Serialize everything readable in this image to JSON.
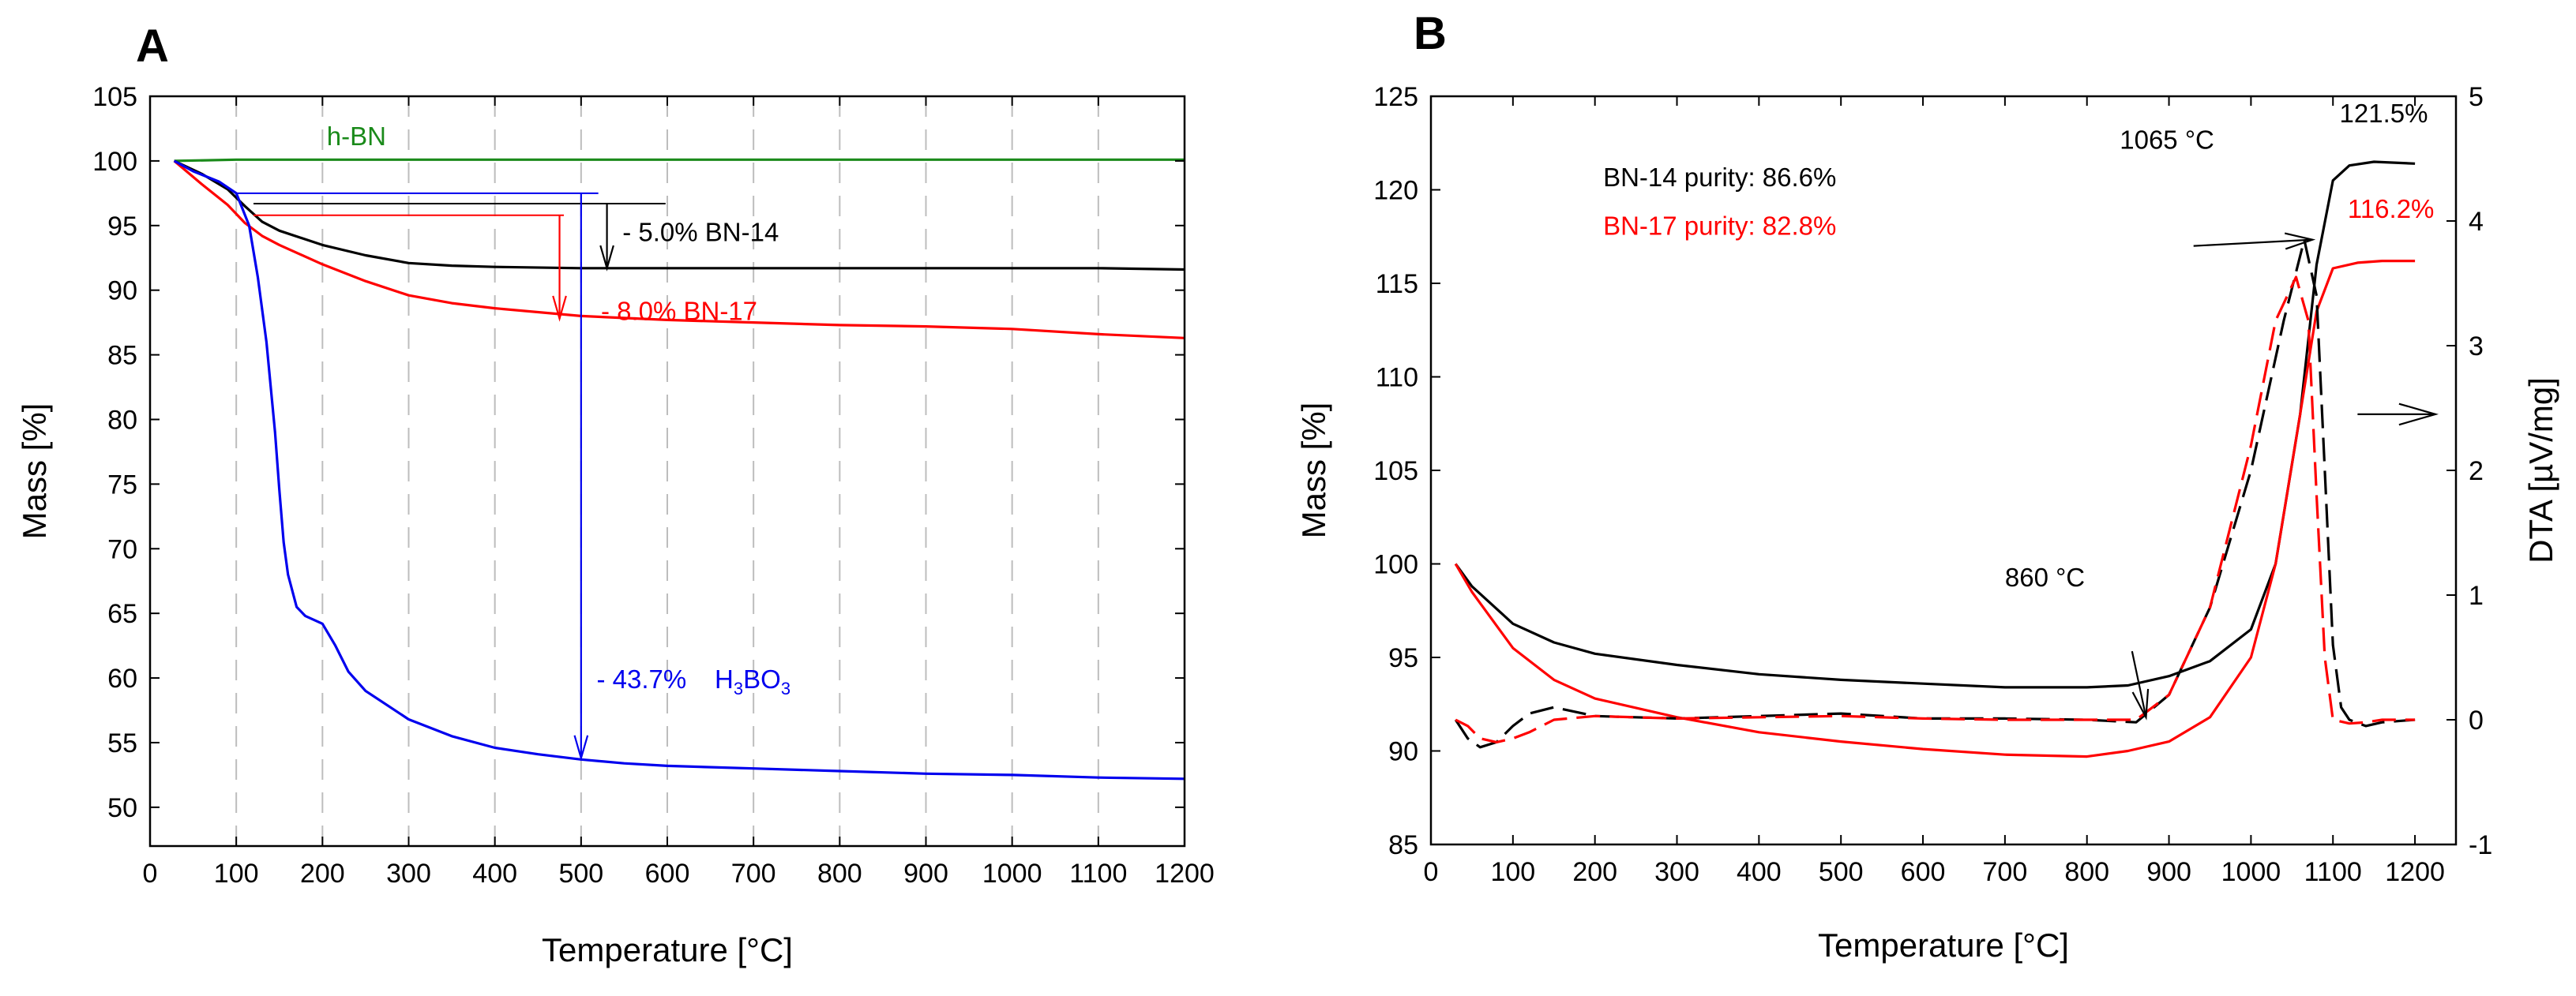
{
  "chart_data": [
    {
      "panel_label": "A",
      "type": "line",
      "xlabel": "Temperature [°C]",
      "ylabel": "Mass [%]",
      "xlim": [
        0,
        1200
      ],
      "ylim": [
        47,
        105
      ],
      "xticks": [
        "0",
        "100",
        "200",
        "300",
        "400",
        "500",
        "600",
        "700",
        "800",
        "900",
        "1000",
        "1100",
        "1200"
      ],
      "yticks": [
        "50",
        "55",
        "60",
        "65",
        "70",
        "75",
        "80",
        "85",
        "90",
        "95",
        "100",
        "105"
      ],
      "vertical_gridlines": "dashed at 100 °C intervals",
      "series": [
        {
          "name": "h-BN",
          "color": "#1a8a1a",
          "x": [
            28,
            100,
            200,
            400,
            600,
            800,
            1000,
            1200
          ],
          "y": [
            100.0,
            100.1,
            100.1,
            100.1,
            100.1,
            100.1,
            100.1,
            100.1
          ]
        },
        {
          "name": "BN-14",
          "color": "#000000",
          "x": [
            28,
            60,
            90,
            110,
            130,
            150,
            200,
            250,
            300,
            350,
            400,
            500,
            600,
            700,
            800,
            900,
            1000,
            1100,
            1200
          ],
          "y": [
            100.0,
            99.0,
            97.8,
            96.5,
            95.3,
            94.6,
            93.5,
            92.7,
            92.1,
            91.9,
            91.8,
            91.7,
            91.7,
            91.7,
            91.7,
            91.7,
            91.7,
            91.7,
            91.6
          ]
        },
        {
          "name": "BN-17",
          "color": "#ff0000",
          "x": [
            28,
            60,
            90,
            110,
            130,
            150,
            200,
            250,
            300,
            350,
            400,
            500,
            600,
            700,
            800,
            900,
            1000,
            1100,
            1200
          ],
          "y": [
            100.0,
            98.2,
            96.6,
            95.2,
            94.2,
            93.5,
            92.0,
            90.7,
            89.6,
            89.0,
            88.6,
            88.0,
            87.7,
            87.5,
            87.3,
            87.2,
            87.0,
            86.6,
            86.3
          ]
        },
        {
          "name": "H3BO3",
          "color": "#0000ee",
          "x": [
            28,
            50,
            80,
            100,
            115,
            125,
            135,
            145,
            150,
            155,
            160,
            170,
            180,
            200,
            215,
            230,
            250,
            300,
            350,
            400,
            450,
            500,
            550,
            600,
            700,
            800,
            900,
            1000,
            1100,
            1200
          ],
          "y": [
            100.0,
            99.2,
            98.4,
            97.5,
            95.0,
            91.0,
            86.0,
            79.0,
            74.5,
            70.5,
            68.0,
            65.5,
            64.8,
            64.2,
            62.5,
            60.5,
            59.0,
            56.8,
            55.5,
            54.6,
            54.1,
            53.7,
            53.4,
            53.2,
            53.0,
            52.8,
            52.6,
            52.5,
            52.3,
            52.2
          ]
        }
      ],
      "annotations": [
        {
          "text": "h-BN",
          "color": "#1a8a1a"
        },
        {
          "text": "- 5.0%  BN-14",
          "color": "#000000",
          "from": 96.7,
          "to": 91.7,
          "at_x": 530
        },
        {
          "text": "- 8.0%   BN-17",
          "color": "#ff0000",
          "from": 95.8,
          "to": 87.8,
          "at_x": 475
        },
        {
          "text": "- 43.7%   H3BO3",
          "color": "#0000ee",
          "from": 97.5,
          "to": 53.8,
          "at_x": 500
        }
      ],
      "labels": {
        "h_bn": "h-BN",
        "bn14": "- 5.0%  BN-14",
        "bn17": "- 8.0%   BN-17",
        "h3bo3_pct": "- 43.7%",
        "h3bo3": "H3BO3"
      }
    },
    {
      "panel_label": "B",
      "type": "line",
      "xlabel": "Temperature [°C]",
      "ylabel": "Mass [%]",
      "y2label": "DTA [µV/mg]",
      "xlim": [
        0,
        1250
      ],
      "ylim": [
        85,
        125
      ],
      "y2lim": [
        -1,
        5
      ],
      "xticks": [
        "0",
        "100",
        "200",
        "300",
        "400",
        "500",
        "600",
        "700",
        "800",
        "900",
        "1000",
        "1100",
        "1200"
      ],
      "yticks": [
        "85",
        "90",
        "95",
        "100",
        "105",
        "110",
        "115",
        "120",
        "125"
      ],
      "y2ticks": [
        "-1",
        "0",
        "1",
        "2",
        "3",
        "4",
        "5"
      ],
      "series": [
        {
          "name": "BN-14 TG",
          "axis": "left",
          "color": "#000000",
          "dash": "solid",
          "x": [
            30,
            50,
            100,
            150,
            200,
            300,
            400,
            500,
            600,
            700,
            800,
            850,
            900,
            950,
            1000,
            1030,
            1060,
            1080,
            1100,
            1120,
            1150,
            1200
          ],
          "y": [
            100.0,
            98.8,
            96.8,
            95.8,
            95.2,
            94.6,
            94.1,
            93.8,
            93.6,
            93.4,
            93.4,
            93.5,
            94.0,
            94.8,
            96.5,
            100.0,
            108.0,
            116.0,
            120.5,
            121.3,
            121.5,
            121.4
          ]
        },
        {
          "name": "BN-17 TG",
          "axis": "left",
          "color": "#ff0000",
          "dash": "solid",
          "x": [
            30,
            50,
            100,
            150,
            200,
            300,
            400,
            500,
            600,
            700,
            800,
            850,
            900,
            950,
            1000,
            1030,
            1060,
            1080,
            1100,
            1130,
            1160,
            1200
          ],
          "y": [
            100.0,
            98.5,
            95.5,
            93.8,
            92.8,
            91.8,
            91.0,
            90.5,
            90.1,
            89.8,
            89.7,
            90.0,
            90.5,
            91.8,
            95.0,
            100.0,
            108.0,
            113.5,
            115.8,
            116.1,
            116.2,
            116.2
          ]
        },
        {
          "name": "BN-14 DTA",
          "axis": "right",
          "color": "#000000",
          "dash": "dashed",
          "x": [
            30,
            45,
            60,
            80,
            100,
            120,
            150,
            200,
            300,
            400,
            500,
            600,
            700,
            800,
            860,
            900,
            950,
            1000,
            1040,
            1065,
            1080,
            1090,
            1100,
            1110,
            1120,
            1140,
            1160,
            1200
          ],
          "y": [
            0.0,
            -0.15,
            -0.22,
            -0.18,
            -0.05,
            0.05,
            0.1,
            0.03,
            0.01,
            0.03,
            0.05,
            0.01,
            0.01,
            0.0,
            -0.02,
            0.2,
            0.9,
            2.0,
            3.2,
            3.85,
            3.4,
            2.0,
            0.6,
            0.1,
            0.0,
            -0.05,
            -0.02,
            0.0
          ]
        },
        {
          "name": "BN-17 DTA",
          "axis": "right",
          "color": "#ff0000",
          "dash": "dashed",
          "x": [
            30,
            45,
            60,
            80,
            100,
            120,
            150,
            200,
            300,
            400,
            500,
            600,
            700,
            800,
            860,
            900,
            950,
            1000,
            1030,
            1055,
            1070,
            1080,
            1090,
            1100,
            1120,
            1140,
            1160,
            1200
          ],
          "y": [
            0.0,
            -0.05,
            -0.15,
            -0.18,
            -0.15,
            -0.1,
            0.0,
            0.03,
            0.01,
            0.02,
            0.03,
            0.01,
            0.0,
            0.0,
            0.0,
            0.2,
            0.9,
            2.2,
            3.2,
            3.55,
            3.2,
            1.8,
            0.5,
            0.0,
            -0.03,
            -0.02,
            0.0,
            0.0
          ]
        }
      ],
      "labels": {
        "bn14_purity": "BN-14 purity: 86.6%",
        "bn17_purity": "BN-17 purity: 82.8%",
        "t1065": "1065 °C",
        "t860": "860 °C",
        "p1215": "121.5%",
        "p1162": "116.2%"
      }
    }
  ]
}
